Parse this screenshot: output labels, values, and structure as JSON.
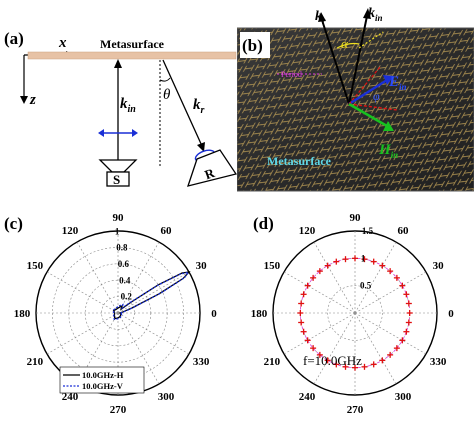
{
  "panel_a": {
    "label": "(a)",
    "axis_x": "x",
    "axis_z": "z",
    "surface_label": "Metasurface",
    "k_in": "k",
    "k_in_sub": "in",
    "k_r": "k",
    "k_r_sub": "r",
    "theta": "θ",
    "source": "S",
    "receiver": "R"
  },
  "panel_b": {
    "label": "(b)",
    "k_r": "k",
    "k_r_sub": "r",
    "k_in": "k",
    "k_in_sub": "in",
    "E_in": "E",
    "E_in_sub": "in",
    "H_in": "H",
    "H_in_sub": "in",
    "phi": "φ",
    "alpha": "α",
    "unit": "Period",
    "surface_label": "Metasurface"
  },
  "panel_c": {
    "label": "(c)",
    "angle_labels": [
      "0",
      "30",
      "60",
      "90",
      "120",
      "150",
      "180",
      "210",
      "240",
      "270",
      "300",
      "330"
    ],
    "radial_labels": [
      "0.2",
      "0.4",
      "0.6",
      "0.8",
      "1"
    ],
    "legend": [
      "10.0GHz-H",
      "10.0GHz-V"
    ]
  },
  "panel_d": {
    "label": "(d)",
    "angle_labels": [
      "0",
      "30",
      "60",
      "90",
      "120",
      "150",
      "180",
      "210",
      "240",
      "270",
      "300",
      "330"
    ],
    "radial_labels": [
      "0.5",
      "1",
      "1.5"
    ],
    "annotation": "f=10.0GHz"
  },
  "chart_data": [
    {
      "type": "polar-line",
      "angle_unit": "degree",
      "r_range": [
        0,
        1
      ],
      "series": [
        {
          "name": "10.0GHz-H",
          "color": "#000000",
          "angles": [
            0,
            5,
            10,
            15,
            20,
            25,
            28,
            30,
            32,
            35,
            40,
            50,
            60,
            90,
            120,
            150,
            180,
            210,
            240,
            270,
            300,
            330,
            355
          ],
          "r": [
            0.02,
            0.03,
            0.05,
            0.08,
            0.18,
            0.55,
            0.9,
            1.0,
            0.92,
            0.6,
            0.2,
            0.06,
            0.1,
            0.06,
            0.05,
            0.06,
            0.04,
            0.05,
            0.08,
            0.06,
            0.05,
            0.04,
            0.03
          ]
        },
        {
          "name": "10.0GHz-V",
          "color": "#1a2fd6",
          "angles": [
            0,
            5,
            10,
            15,
            20,
            25,
            28,
            30,
            32,
            35,
            40,
            50,
            60,
            90,
            120,
            150,
            180,
            210,
            240,
            270,
            300,
            330,
            355
          ],
          "r": [
            0.03,
            0.04,
            0.06,
            0.1,
            0.2,
            0.58,
            0.92,
            0.99,
            0.9,
            0.58,
            0.22,
            0.08,
            0.12,
            0.08,
            0.06,
            0.07,
            0.05,
            0.06,
            0.09,
            0.07,
            0.06,
            0.05,
            0.04
          ]
        }
      ]
    },
    {
      "type": "polar-scatter",
      "angle_unit": "degree",
      "r_range": [
        0,
        1.5
      ],
      "reference_circle_r": 1.0,
      "series": [
        {
          "color": "#e01010",
          "angles": [
            0,
            10,
            20,
            30,
            40,
            50,
            60,
            70,
            80,
            90,
            100,
            110,
            120,
            130,
            140,
            150,
            160,
            170,
            180,
            190,
            200,
            210,
            220,
            230,
            240,
            250,
            260,
            270,
            280,
            290,
            300,
            310,
            320,
            330,
            340,
            350
          ],
          "r": [
            1,
            1,
            1,
            1,
            1,
            1,
            1,
            1,
            1,
            1,
            1,
            1,
            1,
            1,
            1,
            1,
            1,
            1,
            1,
            1,
            1,
            1,
            1,
            1,
            1,
            1,
            1,
            1,
            1,
            1,
            1,
            1,
            1,
            1,
            1,
            1
          ]
        }
      ]
    }
  ]
}
